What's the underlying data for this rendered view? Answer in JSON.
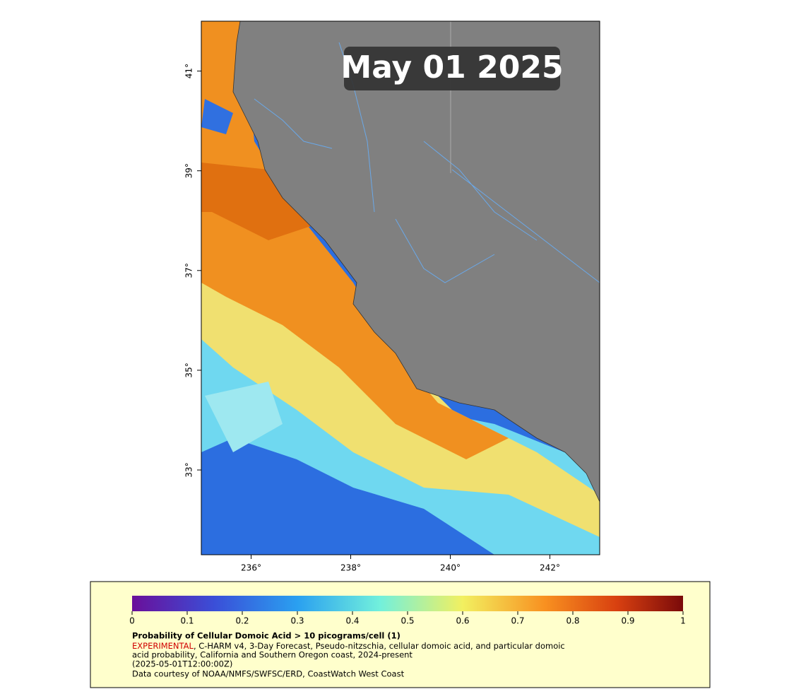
{
  "map": {
    "date_label": "May 01 2025",
    "xlim": [
      235,
      243
    ],
    "ylim": [
      31.3,
      42
    ],
    "xticks": [
      {
        "value": 236,
        "label": "236°"
      },
      {
        "value": 238,
        "label": "238°"
      },
      {
        "value": 240,
        "label": "240°"
      },
      {
        "value": 242,
        "label": "242°"
      }
    ],
    "yticks": [
      {
        "value": 33,
        "label": "33°"
      },
      {
        "value": 35,
        "label": "35°"
      },
      {
        "value": 37,
        "label": "37°"
      },
      {
        "value": 39,
        "label": "39°"
      },
      {
        "value": 41,
        "label": "41°"
      }
    ]
  },
  "colorbar": {
    "range": [
      0,
      1
    ],
    "ticks": [
      0,
      0.1,
      0.2,
      0.3,
      0.4,
      0.5,
      0.6,
      0.7,
      0.8,
      0.9,
      1
    ]
  },
  "legend": {
    "title": "Probability of Cellular Domoic Acid > 10 picograms/cell (1)",
    "flag": "EXPERIMENTAL",
    "lines": [
      ", C-HARM v4, 3-Day Forecast, Pseudo-nitzschia, cellular domoic acid, and particular domoic",
      "acid probability, California and Southern Oregon coast, 2024-present",
      "(2025-05-01T12:00:00Z)",
      "Data courtesy of NOAA/NMFS/SWFSC/ERD, CoastWatch West Coast"
    ]
  }
}
